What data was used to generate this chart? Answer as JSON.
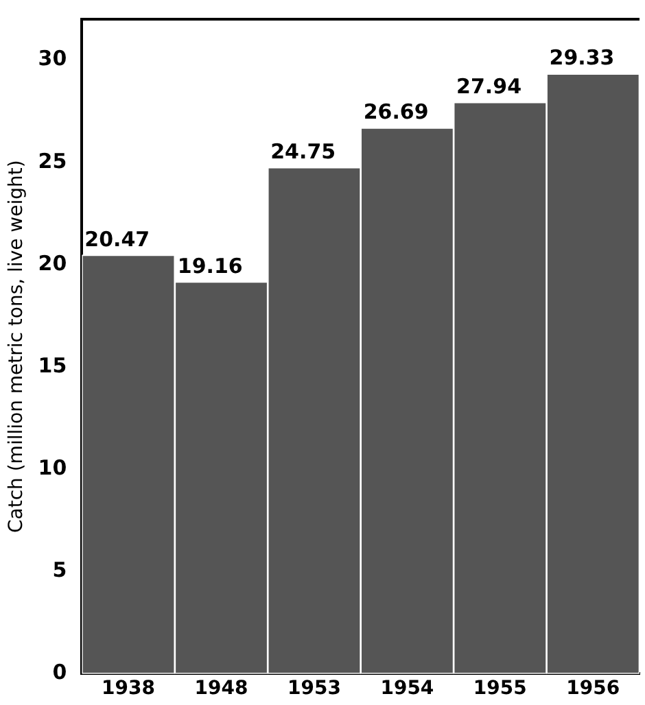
{
  "chart_data": {
    "type": "bar",
    "ylabel": "Catch (million metric tons, live weight)",
    "categories": [
      "1938",
      "1948",
      "1953",
      "1954",
      "1955",
      "1956"
    ],
    "values": [
      20.47,
      19.16,
      24.75,
      26.69,
      27.94,
      29.33
    ],
    "color": "#555555",
    "ylim": [
      0,
      32
    ],
    "yticks": [
      0,
      5,
      10,
      15,
      20,
      25,
      30
    ],
    "grid": false,
    "legend": false,
    "data_labels": true
  }
}
